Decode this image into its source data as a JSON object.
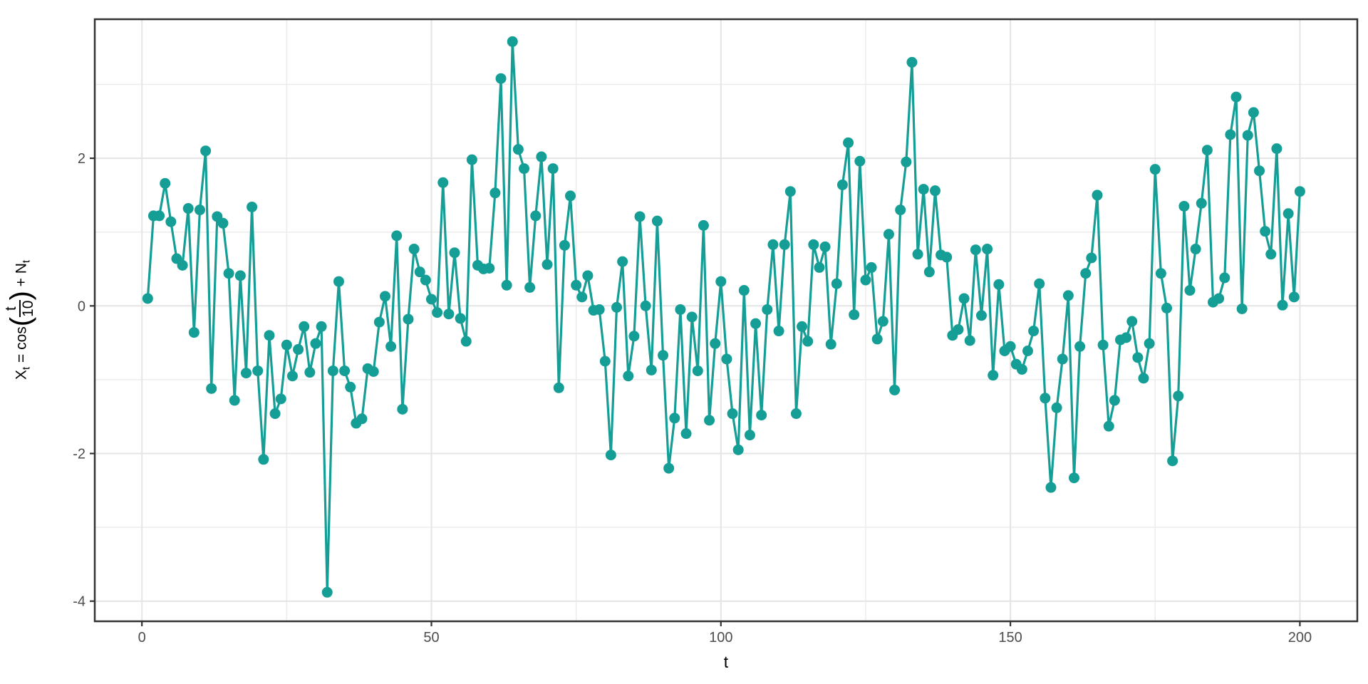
{
  "chart_data": {
    "type": "line",
    "title": "",
    "xlabel": "t",
    "ylabel": "X[t] = cos(t/10) + N[t]",
    "ylabel_parts": {
      "x_var": "X",
      "x_sub": "t",
      "eq": " = cos",
      "open": "(",
      "num": "t",
      "den": "10",
      "close": ")",
      "plus": " + ",
      "n_var": "N",
      "n_sub": "t"
    },
    "x_start": 1,
    "x_step": 1,
    "values": [
      0.1,
      1.22,
      1.22,
      1.66,
      1.14,
      0.64,
      0.55,
      1.32,
      -0.36,
      1.3,
      2.1,
      -1.12,
      1.21,
      1.12,
      0.44,
      -1.28,
      0.41,
      -0.91,
      1.34,
      -0.88,
      -2.08,
      -0.4,
      -1.46,
      -1.26,
      -0.53,
      -0.95,
      -0.59,
      -0.28,
      -0.9,
      -0.51,
      -0.28,
      -3.88,
      -0.88,
      0.33,
      -0.88,
      -1.1,
      -1.59,
      -1.53,
      -0.85,
      -0.89,
      -0.22,
      0.13,
      -0.55,
      0.95,
      -1.4,
      -0.18,
      0.77,
      0.46,
      0.35,
      0.09,
      -0.09,
      1.67,
      -0.11,
      0.72,
      -0.17,
      -0.48,
      1.98,
      0.55,
      0.5,
      0.51,
      1.53,
      3.08,
      0.28,
      3.58,
      2.12,
      1.86,
      0.25,
      1.22,
      2.02,
      0.56,
      1.86,
      -1.11,
      0.82,
      1.49,
      0.28,
      0.12,
      0.41,
      -0.06,
      -0.05,
      -0.75,
      -2.02,
      -0.02,
      0.6,
      -0.95,
      -0.41,
      1.21,
      0.0,
      -0.87,
      1.15,
      -0.67,
      -2.2,
      -1.52,
      -0.05,
      -1.73,
      -0.15,
      -0.88,
      1.09,
      -1.55,
      -0.51,
      0.33,
      -0.72,
      -1.46,
      -1.95,
      0.21,
      -1.75,
      -0.24,
      -1.48,
      -0.05,
      0.83,
      -0.34,
      0.83,
      1.55,
      -1.46,
      -0.28,
      -0.48,
      0.83,
      0.52,
      0.8,
      -0.52,
      0.3,
      1.64,
      2.21,
      -0.12,
      1.96,
      0.35,
      0.52,
      -0.45,
      -0.21,
      0.97,
      -1.14,
      1.3,
      1.95,
      3.3,
      0.7,
      1.58,
      0.46,
      1.56,
      0.69,
      0.66,
      -0.4,
      -0.32,
      0.1,
      -0.47,
      0.76,
      -0.13,
      0.77,
      -0.94,
      0.29,
      -0.61,
      -0.55,
      -0.79,
      -0.86,
      -0.61,
      -0.34,
      0.3,
      -1.25,
      -2.46,
      -1.38,
      -0.72,
      0.14,
      -2.33,
      -0.55,
      0.44,
      0.65,
      1.5,
      -0.53,
      -1.63,
      -1.28,
      -0.46,
      -0.43,
      -0.21,
      -0.7,
      -0.98,
      -0.51,
      1.85,
      0.44,
      -0.03,
      -2.1,
      -1.22,
      1.35,
      0.21,
      0.77,
      1.39,
      2.11,
      0.05,
      0.1,
      0.38,
      2.32,
      2.83,
      -0.04,
      2.31,
      2.62,
      1.83,
      1.01,
      0.7,
      2.13,
      0.01,
      1.25,
      0.12,
      1.55
    ],
    "x_ticks": {
      "values": [
        0,
        50,
        100,
        150,
        200
      ],
      "labels": [
        "0",
        "50",
        "100",
        "150",
        "200"
      ]
    },
    "x_minor": [
      25,
      75,
      125,
      175
    ],
    "y_ticks": {
      "values": [
        2,
        0,
        -2,
        -4
      ],
      "labels": [
        "2",
        "0",
        "-2",
        "-4"
      ]
    },
    "y_minor": [
      3,
      1,
      -1,
      -3
    ],
    "xlim": [
      -8.2,
      210.0
    ],
    "ylim": [
      -4.27,
      3.88
    ],
    "grid": true,
    "legend": "none",
    "colors": {
      "series": "#149E96",
      "grid_major": "#E4E4E4",
      "grid_minor": "#ECECEC",
      "panel_border": "#333333",
      "tick_mark": "#333333",
      "tick_label": "#4D4D4D",
      "axis_title": "#000000",
      "background": "#FFFFFF"
    }
  }
}
